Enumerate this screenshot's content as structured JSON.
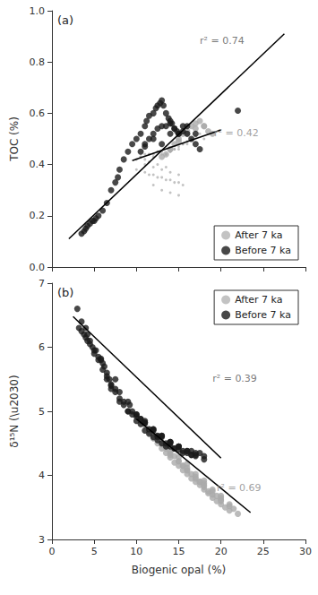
{
  "chart_data": [
    {
      "type": "scatter",
      "title": "(a)",
      "ylabel": "TOC (%)",
      "xlim": [
        0,
        30
      ],
      "ylim": [
        0.0,
        1.0
      ],
      "xticks": [
        0,
        5,
        10,
        15,
        20,
        25,
        30
      ],
      "yticks": [
        {
          "value": 0.0,
          "label": "0.0"
        },
        0.2,
        0.4,
        0.6,
        0.8,
        {
          "value": 1.0,
          "label": "1.0"
        }
      ],
      "tick_labels": "y",
      "grid": false,
      "legend": "lower right",
      "series": [
        {
          "name": "After 7 ka",
          "color": "#aaaaaa",
          "marker": "point",
          "x": [
            10.0,
            10.5,
            11.0,
            11.5,
            12.0,
            12.5,
            13.0,
            13.5,
            14.0,
            14.5,
            15.0,
            15.5,
            16.0,
            16.5,
            17.0,
            17.5,
            18.0,
            10.5,
            11.5,
            12.5,
            13.5,
            14.5,
            15.5,
            16.5,
            11.0,
            12.0,
            13.0,
            14.0,
            15.0,
            16.0,
            10.0,
            11.0,
            12.0,
            13.0,
            14.0,
            15.0,
            11.5,
            12.5,
            13.5,
            14.5,
            15.5,
            12.0,
            13.0,
            14.0,
            15.0,
            11.0,
            12.0,
            13.0,
            14.0,
            15.0,
            11.5,
            12.5,
            13.5
          ],
          "values": [
            0.42,
            0.43,
            0.44,
            0.44,
            0.44,
            0.45,
            0.45,
            0.44,
            0.45,
            0.46,
            0.47,
            0.48,
            0.49,
            0.5,
            0.51,
            0.52,
            0.5,
            0.43,
            0.44,
            0.45,
            0.44,
            0.46,
            0.48,
            0.5,
            0.42,
            0.43,
            0.44,
            0.45,
            0.46,
            0.48,
            0.38,
            0.37,
            0.36,
            0.35,
            0.34,
            0.33,
            0.36,
            0.35,
            0.34,
            0.33,
            0.32,
            0.32,
            0.3,
            0.29,
            0.28,
            0.4,
            0.39,
            0.38,
            0.37,
            0.36,
            0.41,
            0.4,
            0.39
          ]
        },
        {
          "name": "After 7 ka",
          "color": "#aaaaaa",
          "marker": "circle",
          "x": [
            13.5,
            14.0,
            14.5,
            15.0,
            15.5,
            16.0,
            16.5,
            17.0,
            17.5,
            18.0,
            18.5,
            13.0,
            14.0,
            15.0,
            16.0,
            17.0,
            18.0,
            19.0
          ],
          "values": [
            0.44,
            0.46,
            0.48,
            0.5,
            0.52,
            0.53,
            0.55,
            0.56,
            0.57,
            0.55,
            0.53,
            0.43,
            0.46,
            0.49,
            0.52,
            0.54,
            0.55,
            0.52
          ]
        },
        {
          "name": "Before 7 ka",
          "color": "#1a1a1a",
          "marker": "circle",
          "x": [
            3.5,
            3.8,
            4.0,
            4.2,
            4.5,
            4.8,
            5.0,
            5.2,
            5.5,
            6.0,
            6.5,
            7.0,
            7.5,
            7.8,
            8.0,
            8.5,
            9.0,
            9.5,
            10.0,
            10.5,
            11.0,
            11.2,
            11.5,
            12.0,
            12.3,
            12.5,
            12.8,
            13.0,
            13.2,
            13.5,
            13.8,
            14.0,
            14.2,
            14.5,
            14.8,
            15.0,
            15.5,
            16.0,
            16.5,
            17.0,
            17.5,
            11.0,
            11.5,
            12.0,
            12.5,
            13.0,
            13.5,
            14.0,
            14.5,
            15.0,
            10.5,
            11.0,
            12.0,
            13.0,
            14.0,
            15.5,
            16.0,
            17.0,
            22.0
          ],
          "values": [
            0.13,
            0.14,
            0.15,
            0.16,
            0.17,
            0.18,
            0.18,
            0.19,
            0.2,
            0.22,
            0.25,
            0.3,
            0.33,
            0.35,
            0.38,
            0.42,
            0.45,
            0.48,
            0.5,
            0.52,
            0.55,
            0.57,
            0.59,
            0.6,
            0.62,
            0.63,
            0.64,
            0.65,
            0.63,
            0.6,
            0.58,
            0.57,
            0.56,
            0.54,
            0.53,
            0.52,
            0.53,
            0.52,
            0.5,
            0.48,
            0.46,
            0.48,
            0.5,
            0.52,
            0.54,
            0.55,
            0.55,
            0.56,
            0.54,
            0.52,
            0.45,
            0.47,
            0.5,
            0.48,
            0.52,
            0.55,
            0.55,
            0.52,
            0.61
          ]
        },
        {
          "type": "line",
          "color": "#000000",
          "line_style": "solid",
          "x": [
            2.0,
            27.5
          ],
          "values": [
            0.11,
            0.91
          ]
        },
        {
          "type": "line",
          "color": "#000000",
          "line_style": "solid",
          "x": [
            9.5,
            20.0
          ],
          "values": [
            0.415,
            0.535
          ]
        }
      ],
      "annotations": [
        {
          "text": "r² = 0.74",
          "x": 17.5,
          "y": 0.86,
          "color": "#555555"
        },
        {
          "text": "r² = 0.42",
          "x": 19.2,
          "y": 0.5,
          "color": "#888888"
        }
      ]
    },
    {
      "type": "scatter",
      "title": "(b)",
      "xlabel": "Biogenic opal (%)",
      "ylabel": "δ¹⁵N (\\u2030)",
      "xlim": [
        0,
        30
      ],
      "ylim": [
        3.0,
        7.0
      ],
      "xticks": [
        0,
        5,
        10,
        15,
        20,
        25,
        30
      ],
      "yticks": [
        3,
        4,
        5,
        6,
        7
      ],
      "grid": false,
      "legend": "upper right",
      "series": [
        {
          "name": "After 7 ka",
          "color": "#aaaaaa",
          "marker": "circle",
          "x": [
            10.5,
            11.0,
            11.5,
            12.0,
            12.5,
            13.0,
            13.5,
            14.0,
            14.5,
            15.0,
            15.5,
            16.0,
            16.5,
            17.0,
            17.5,
            18.0,
            18.5,
            19.0,
            19.5,
            20.0,
            20.5,
            21.0,
            11.0,
            12.0,
            13.0,
            14.0,
            15.0,
            16.0,
            17.0,
            18.0,
            19.0,
            20.0,
            12.5,
            13.5,
            14.5,
            15.5,
            16.5,
            17.5,
            18.5,
            11.5,
            13.5,
            15.5,
            17.5,
            19.5,
            21.5,
            12.0,
            14.0,
            16.0,
            18.0,
            20.0,
            22.0,
            13.0,
            15.0,
            17.0,
            19.0,
            21.0,
            14.0,
            16.0,
            18.0,
            20.0,
            15.0,
            17.0,
            19.0,
            21.0,
            16.0,
            18.0,
            20.0
          ],
          "values": [
            4.85,
            4.78,
            4.68,
            4.58,
            4.5,
            4.42,
            4.35,
            4.28,
            4.2,
            4.15,
            4.08,
            4.02,
            3.95,
            3.9,
            3.85,
            3.78,
            3.72,
            3.65,
            3.6,
            3.55,
            3.5,
            3.45,
            4.8,
            4.65,
            4.5,
            4.35,
            4.22,
            4.08,
            3.95,
            3.82,
            3.7,
            3.6,
            4.62,
            4.45,
            4.3,
            4.15,
            4.02,
            3.9,
            3.75,
            4.72,
            4.42,
            4.15,
            3.9,
            3.68,
            3.48,
            4.58,
            4.32,
            4.08,
            3.85,
            3.62,
            3.4,
            4.48,
            4.22,
            3.98,
            3.75,
            3.52,
            4.38,
            4.12,
            3.88,
            3.65,
            4.28,
            4.02,
            3.78,
            3.55,
            4.18,
            3.92,
            3.68
          ]
        },
        {
          "name": "Before 7 ka",
          "color": "#1a1a1a",
          "marker": "circle",
          "x": [
            3.0,
            3.2,
            3.5,
            3.8,
            4.0,
            4.2,
            4.5,
            4.8,
            5.0,
            5.2,
            5.5,
            5.8,
            6.0,
            6.2,
            6.5,
            6.8,
            7.0,
            7.5,
            8.0,
            8.5,
            9.0,
            9.5,
            10.0,
            10.5,
            11.0,
            11.5,
            12.0,
            12.5,
            13.0,
            13.5,
            14.0,
            14.5,
            15.0,
            15.5,
            16.0,
            16.5,
            17.0,
            18.0,
            4.0,
            4.5,
            5.0,
            5.5,
            6.0,
            6.5,
            7.0,
            8.0,
            9.0,
            10.0,
            11.0,
            12.0,
            13.0,
            14.0,
            15.0,
            3.5,
            4.2,
            5.8,
            7.5,
            9.2,
            10.5,
            12.5,
            14.0,
            16.5,
            17.5,
            6.5,
            7.5,
            8.5,
            9.5,
            10.5,
            11.5,
            12.5,
            13.5,
            14.5,
            15.5,
            16.5,
            10.0,
            11.0,
            12.0,
            13.0,
            14.0,
            15.0,
            16.0,
            17.0,
            7.0,
            8.0,
            9.0,
            10.0,
            11.0,
            12.0,
            13.0,
            14.0,
            15.0,
            16.0,
            17.0,
            18.0
          ],
          "values": [
            6.6,
            6.3,
            6.25,
            6.2,
            6.15,
            6.1,
            6.05,
            6.0,
            5.9,
            5.95,
            5.85,
            5.8,
            5.75,
            5.7,
            5.6,
            5.5,
            5.4,
            5.3,
            5.2,
            5.1,
            5.0,
            4.95,
            4.85,
            4.8,
            4.7,
            4.65,
            4.6,
            4.55,
            4.5,
            4.45,
            4.45,
            4.42,
            4.4,
            4.38,
            4.35,
            4.32,
            4.3,
            4.25,
            6.3,
            6.1,
            5.95,
            5.8,
            5.65,
            5.5,
            5.35,
            5.15,
            5.0,
            4.95,
            4.85,
            4.7,
            4.6,
            4.52,
            4.45,
            6.4,
            6.2,
            5.82,
            5.5,
            5.1,
            4.88,
            4.62,
            4.5,
            4.38,
            4.35,
            5.55,
            5.35,
            5.15,
            5.0,
            4.88,
            4.72,
            4.6,
            4.5,
            4.42,
            4.35,
            4.32,
            4.92,
            4.82,
            4.72,
            4.62,
            4.52,
            4.45,
            4.38,
            4.32,
            5.42,
            5.3,
            5.15,
            4.95,
            4.82,
            4.72,
            4.62,
            4.52,
            4.45,
            4.38,
            4.35,
            4.3
          ]
        },
        {
          "type": "line",
          "color": "#000000",
          "line_style": "solid",
          "x": [
            2.5,
            20.0
          ],
          "values": [
            6.48,
            4.27
          ]
        },
        {
          "type": "line",
          "color": "#000000",
          "line_style": "solid",
          "x": [
            10.0,
            23.5
          ],
          "values": [
            4.88,
            3.42
          ]
        }
      ],
      "annotations": [
        {
          "text": "r² = 0.39",
          "x": 19.0,
          "y": 5.42,
          "color": "#555555"
        },
        {
          "text": "r² = 0.69",
          "x": 19.5,
          "y": 3.72,
          "color": "#888888"
        }
      ]
    }
  ]
}
